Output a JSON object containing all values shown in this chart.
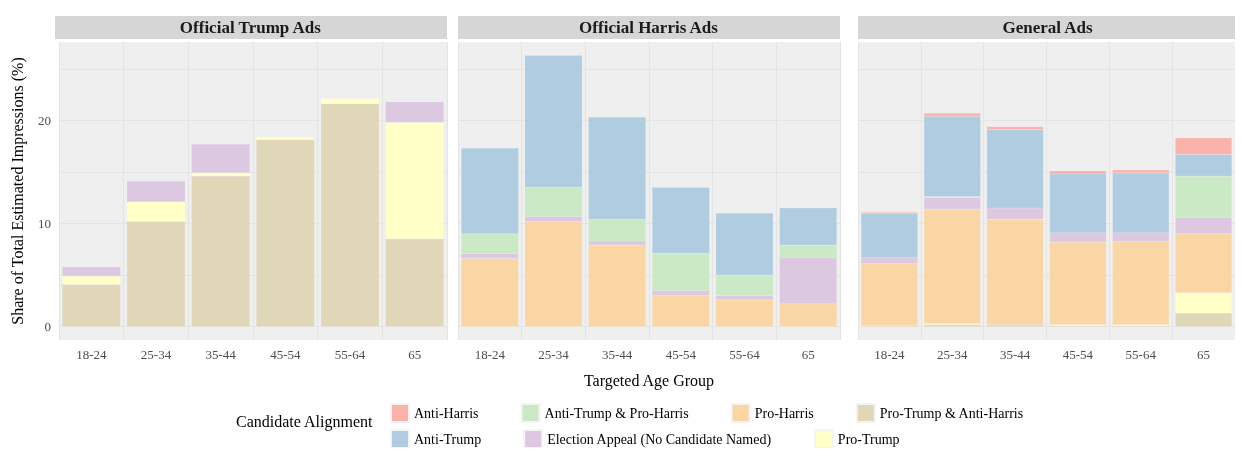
{
  "chart_data": [
    {
      "type": "bar",
      "title": "Official Trump Ads",
      "ylabel": "Share of Total Estimated Impressions (%)",
      "categories": [
        "18-24",
        "25-34",
        "35-44",
        "45-54",
        "55-64",
        "65"
      ],
      "stacked": true,
      "ylim": [
        -1.3,
        27.6
      ],
      "yticks": [
        0,
        {
          "value": 5,
          "label": null
        },
        10,
        {
          "value": 15,
          "label": null
        },
        20,
        {
          "value": 25,
          "label": null
        }
      ],
      "grid": true,
      "legend": "bottom",
      "series": [
        {
          "name": "Pro-Trump & Anti-Harris",
          "color": "#e0d6b8",
          "values": [
            4.1,
            10.2,
            14.6,
            18.1,
            21.6,
            8.5
          ]
        },
        {
          "name": "Pro-Trump",
          "color": "#ffffc6",
          "values": [
            0.8,
            1.9,
            0.3,
            0.3,
            0.5,
            11.3
          ]
        },
        {
          "name": "Election Appeal (No Candidate Named)",
          "color": "#dcc8e0",
          "values": [
            0.9,
            2.0,
            2.8,
            null,
            null,
            2.0
          ]
        }
      ]
    },
    {
      "type": "bar",
      "title": "Official Harris Ads",
      "xlabel": "Targeted Age Group",
      "categories": [
        "18-24",
        "25-34",
        "35-44",
        "45-54",
        "55-64",
        "65"
      ],
      "stacked": true,
      "ylim": [
        -1.3,
        27.6
      ],
      "yticks": [
        0,
        {
          "value": 5,
          "label": null
        },
        10,
        {
          "value": 15,
          "label": null
        },
        20,
        {
          "value": 25,
          "label": null
        }
      ],
      "grid": true,
      "tick_labels": "x",
      "legend": "bottom",
      "series": [
        {
          "name": "Pro-Harris",
          "color": "#fad6a5",
          "values": [
            6.6,
            10.2,
            7.9,
            3.0,
            2.6,
            2.2
          ]
        },
        {
          "name": "Election Appeal (No Candidate Named)",
          "color": "#dcc8e0",
          "values": [
            0.5,
            0.5,
            0.4,
            0.5,
            0.4,
            4.5
          ]
        },
        {
          "name": "Anti-Trump & Pro-Harris",
          "color": "#cae9c4",
          "values": [
            1.9,
            2.8,
            2.1,
            3.6,
            2.0,
            1.2
          ]
        },
        {
          "name": "Anti-Trump",
          "color": "#afcce0",
          "values": [
            8.3,
            12.8,
            9.9,
            6.4,
            6.0,
            3.6
          ]
        }
      ]
    },
    {
      "type": "bar",
      "title": "General Ads",
      "legend_title": "Candidate Alignment",
      "categories": [
        "18-24",
        "25-34",
        "35-44",
        "45-54",
        "55-64",
        "65"
      ],
      "stacked": true,
      "ylim": [
        -1.3,
        27.6
      ],
      "yticks": [
        0,
        {
          "value": 5,
          "label": null
        },
        10,
        {
          "value": 15,
          "label": null
        },
        20,
        {
          "value": 25,
          "label": null
        }
      ],
      "grid": true,
      "tick_labels": "x",
      "legend": "bottom",
      "series": [
        {
          "name": "Pro-Trump & Anti-Harris",
          "color": "#e0d6b8",
          "values": [
            0.1,
            0.2,
            0.2,
            0.1,
            0.1,
            1.3
          ]
        },
        {
          "name": "Pro-Trump",
          "color": "#ffffc6",
          "values": [
            null,
            0.1,
            null,
            0.1,
            0.1,
            2.0
          ]
        },
        {
          "name": "Pro-Harris",
          "color": "#fad6a5",
          "values": [
            6.0,
            11.1,
            10.2,
            8.0,
            8.1,
            5.7
          ]
        },
        {
          "name": "Election Appeal (No Candidate Named)",
          "color": "#dcc8e0",
          "values": [
            0.6,
            1.1,
            1.1,
            0.9,
            0.8,
            1.6
          ]
        },
        {
          "name": "Anti-Trump & Pro-Harris",
          "color": "#cae9c4",
          "values": [
            null,
            0.1,
            null,
            null,
            null,
            4.0
          ]
        },
        {
          "name": "Anti-Trump",
          "color": "#afcce0",
          "values": [
            4.3,
            7.8,
            7.6,
            5.7,
            5.8,
            2.1
          ]
        },
        {
          "name": "Anti-Harris",
          "color": "#f9b3ab",
          "values": [
            0.1,
            0.3,
            0.3,
            0.3,
            0.3,
            1.6
          ]
        }
      ]
    }
  ]
}
